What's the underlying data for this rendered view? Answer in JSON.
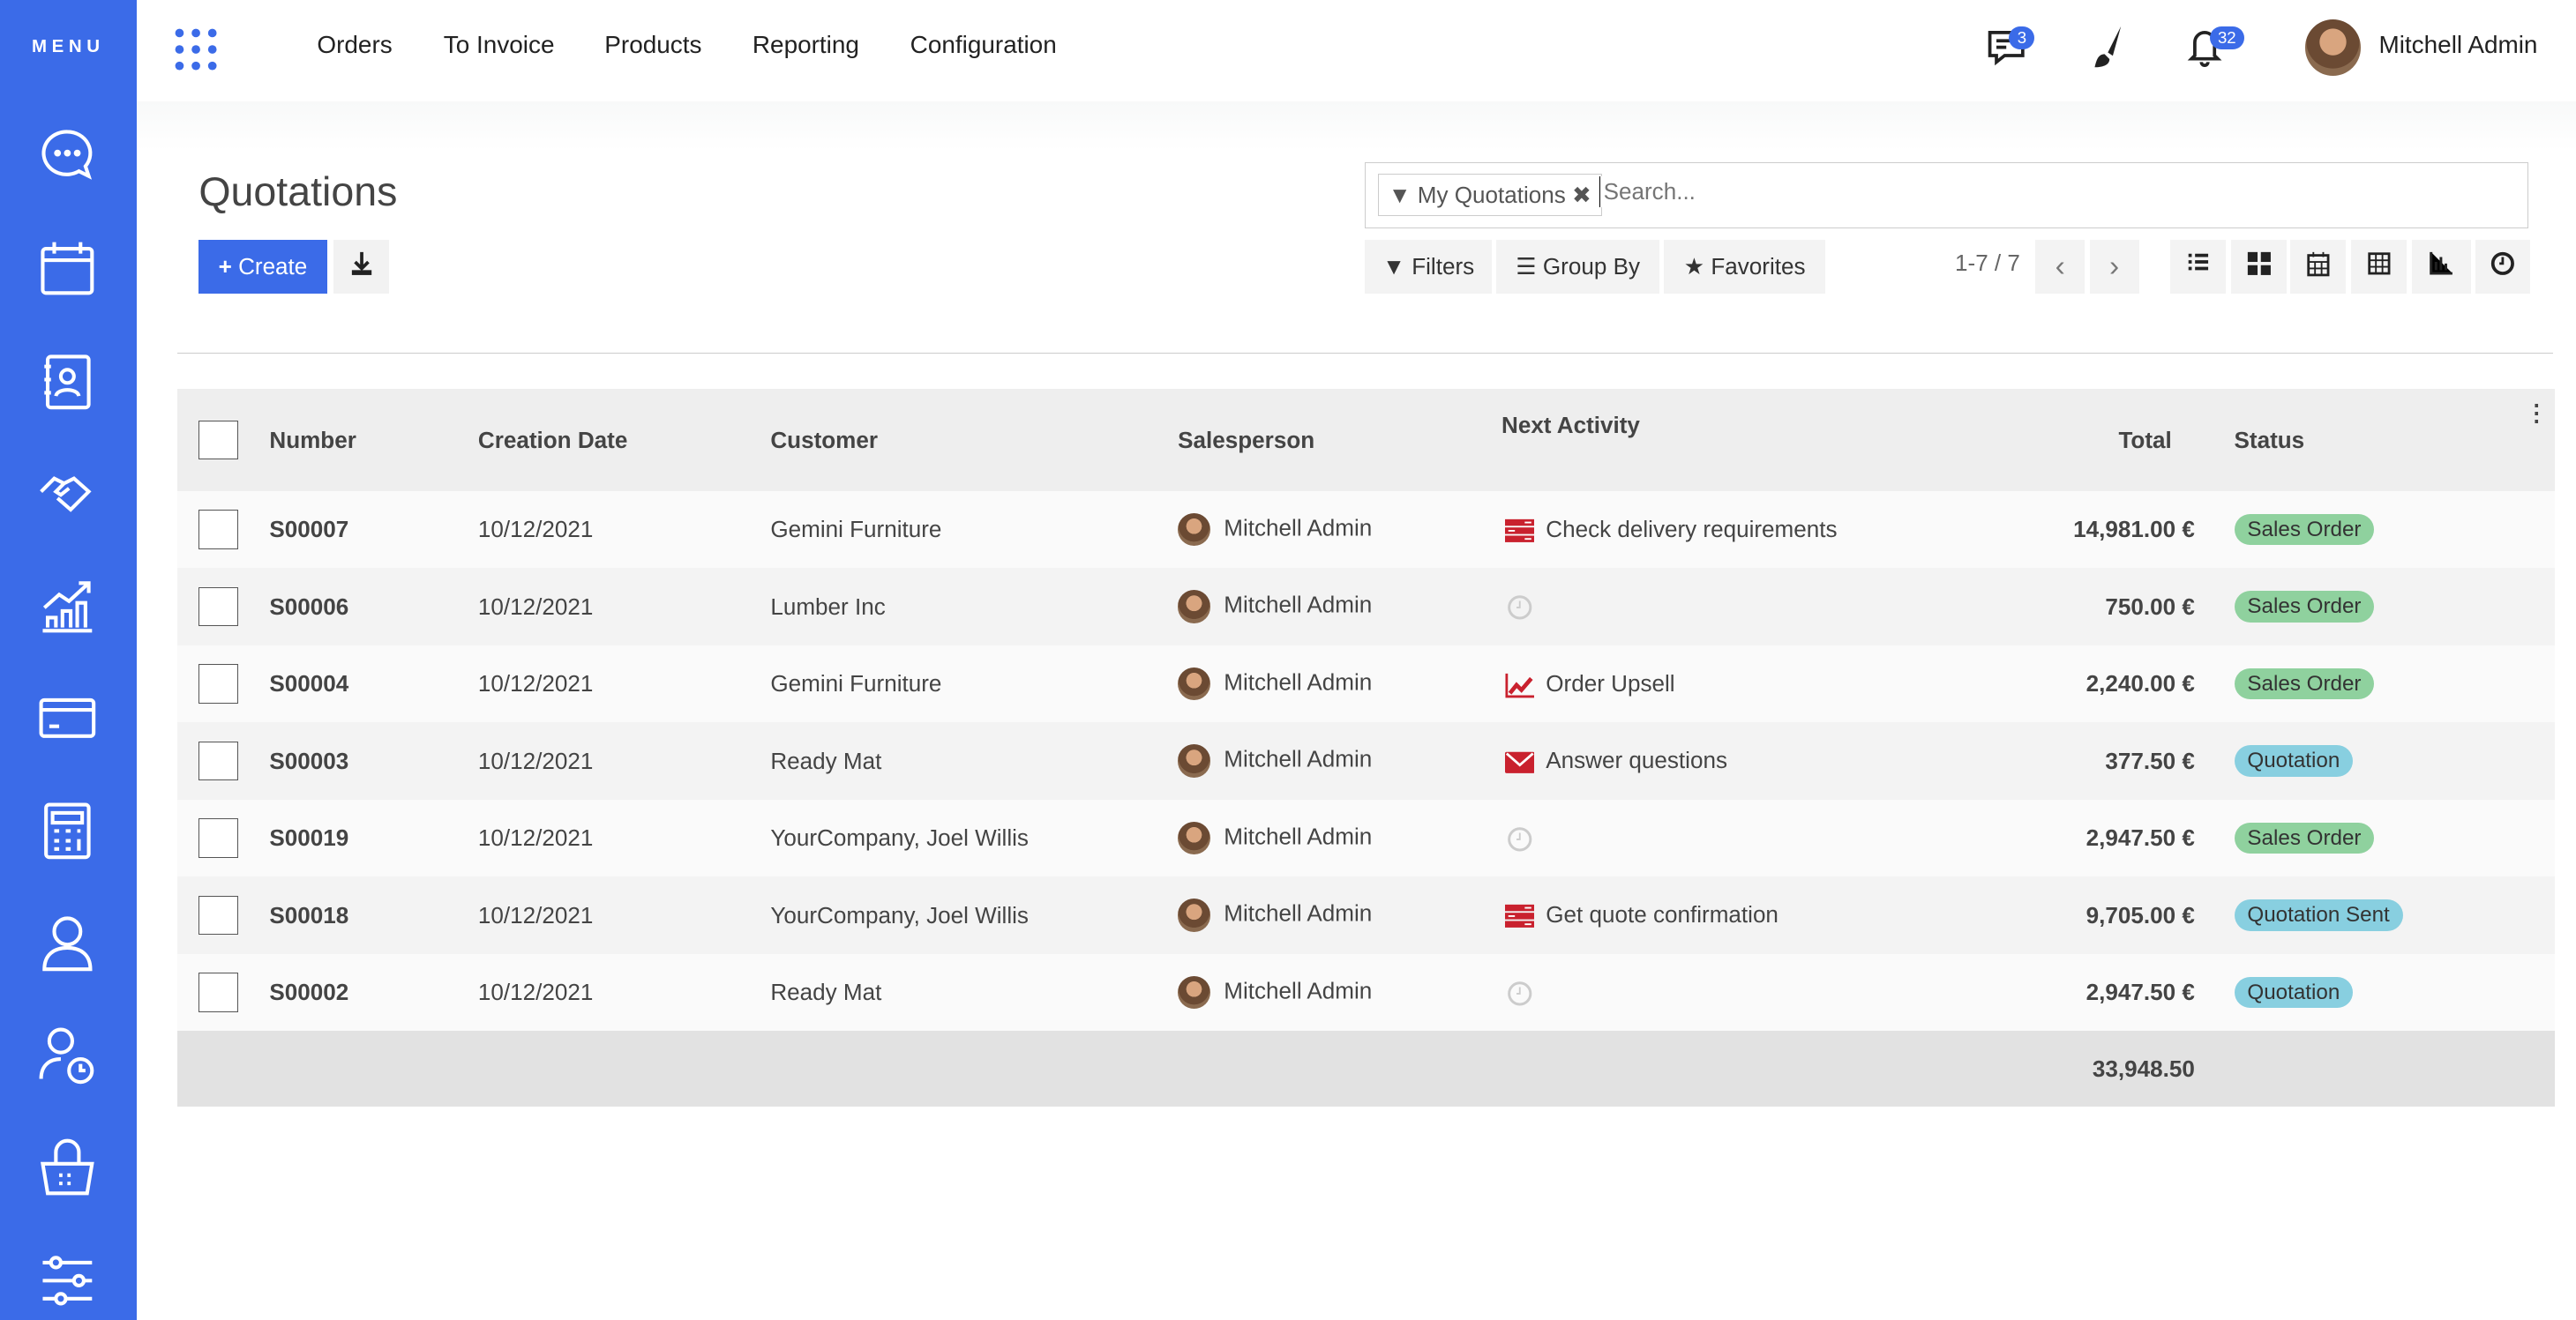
{
  "sidebar": {
    "menu_label": "MENU",
    "items": [
      "chat-icon",
      "calendar-icon",
      "contacts-icon",
      "crm-handshake-icon",
      "sales-chart-icon",
      "credit-card-icon",
      "calculator-icon",
      "user-icon",
      "user-clock-icon",
      "basket-icon",
      "sliders-icon"
    ]
  },
  "topnav": {
    "items": [
      "Orders",
      "To Invoice",
      "Products",
      "Reporting",
      "Configuration"
    ]
  },
  "systray": {
    "messages_count": "3",
    "activity_count": "32",
    "user_name": "Mitchell Admin"
  },
  "page": {
    "title": "Quotations",
    "create_label": "Create"
  },
  "search": {
    "facet": "My Quotations",
    "placeholder": "Search..."
  },
  "filters": {
    "filters_label": "Filters",
    "group_by_label": "Group By",
    "favorites_label": "Favorites"
  },
  "pager": {
    "value": "1-7 / 7"
  },
  "views": [
    "list",
    "kanban",
    "calendar",
    "pivot",
    "graph",
    "activity"
  ],
  "table": {
    "columns": [
      "Number",
      "Creation Date",
      "Customer",
      "Salesperson",
      "Next Activity",
      "Total",
      "Status"
    ],
    "rows": [
      {
        "number": "S00007",
        "date": "10/12/2021",
        "customer": "Gemini Furniture",
        "salesperson": "Mitchell Admin",
        "activity": "Check delivery requirements",
        "activity_icon": "tasks",
        "total": "14,981.00 €",
        "status": "Sales Order"
      },
      {
        "number": "S00006",
        "date": "10/12/2021",
        "customer": "Lumber Inc",
        "salesperson": "Mitchell Admin",
        "activity": "",
        "activity_icon": "clock",
        "total": "750.00 €",
        "status": "Sales Order"
      },
      {
        "number": "S00004",
        "date": "10/12/2021",
        "customer": "Gemini Furniture",
        "salesperson": "Mitchell Admin",
        "activity": "Order Upsell",
        "activity_icon": "chart",
        "total": "2,240.00 €",
        "status": "Sales Order"
      },
      {
        "number": "S00003",
        "date": "10/12/2021",
        "customer": "Ready Mat",
        "salesperson": "Mitchell Admin",
        "activity": "Answer questions",
        "activity_icon": "envelope",
        "total": "377.50 €",
        "status": "Quotation"
      },
      {
        "number": "S00019",
        "date": "10/12/2021",
        "customer": "YourCompany, Joel Willis",
        "salesperson": "Mitchell Admin",
        "activity": "",
        "activity_icon": "clock",
        "total": "2,947.50 €",
        "status": "Sales Order"
      },
      {
        "number": "S00018",
        "date": "10/12/2021",
        "customer": "YourCompany, Joel Willis",
        "salesperson": "Mitchell Admin",
        "activity": "Get quote confirmation",
        "activity_icon": "tasks",
        "total": "9,705.00 €",
        "status": "Quotation Sent"
      },
      {
        "number": "S00002",
        "date": "10/12/2021",
        "customer": "Ready Mat",
        "salesperson": "Mitchell Admin",
        "activity": "",
        "activity_icon": "clock",
        "total": "2,947.50 €",
        "status": "Quotation"
      }
    ],
    "sum_total": "33,948.50"
  },
  "colors": {
    "brand": "#3b6be8",
    "sales_order": "#8fd19e",
    "quotation": "#88cfe0",
    "activity": "#c9212e"
  }
}
